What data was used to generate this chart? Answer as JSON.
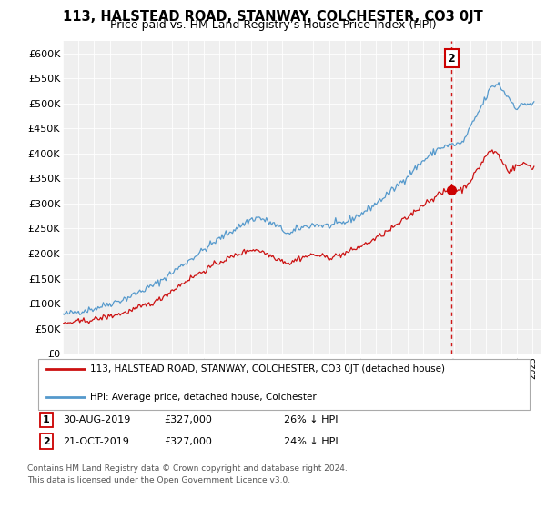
{
  "title": "113, HALSTEAD ROAD, STANWAY, COLCHESTER, CO3 0JT",
  "subtitle": "Price paid vs. HM Land Registry’s House Price Index (HPI)",
  "ylabel_ticks": [
    "£0",
    "£50K",
    "£100K",
    "£150K",
    "£200K",
    "£250K",
    "£300K",
    "£350K",
    "£400K",
    "£450K",
    "£500K",
    "£550K",
    "£600K"
  ],
  "ytick_values": [
    0,
    50000,
    100000,
    150000,
    200000,
    250000,
    300000,
    350000,
    400000,
    450000,
    500000,
    550000,
    600000
  ],
  "hpi_color": "#5599cc",
  "price_color": "#cc1111",
  "annotation_color": "#cc0000",
  "sale_x": 2019.833,
  "sale_y": 327000,
  "legend_label1": "113, HALSTEAD ROAD, STANWAY, COLCHESTER, CO3 0JT (detached house)",
  "legend_label2": "HPI: Average price, detached house, Colchester",
  "fn1_num": "1",
  "fn1_date": "30-AUG-2019",
  "fn1_price": "£327,000",
  "fn1_hpi": "26% ↓ HPI",
  "fn2_num": "2",
  "fn2_date": "21-OCT-2019",
  "fn2_price": "£327,000",
  "fn2_hpi": "24% ↓ HPI",
  "footnote3": "Contains HM Land Registry data © Crown copyright and database right 2024.",
  "footnote4": "This data is licensed under the Open Government Licence v3.0.",
  "background_color": "#ffffff",
  "plot_bg_color": "#efefef",
  "grid_color": "#ffffff",
  "xlim": [
    1995,
    2025.5
  ],
  "ylim": [
    0,
    625000
  ],
  "title_fontsize": 10.5,
  "subtitle_fontsize": 9
}
